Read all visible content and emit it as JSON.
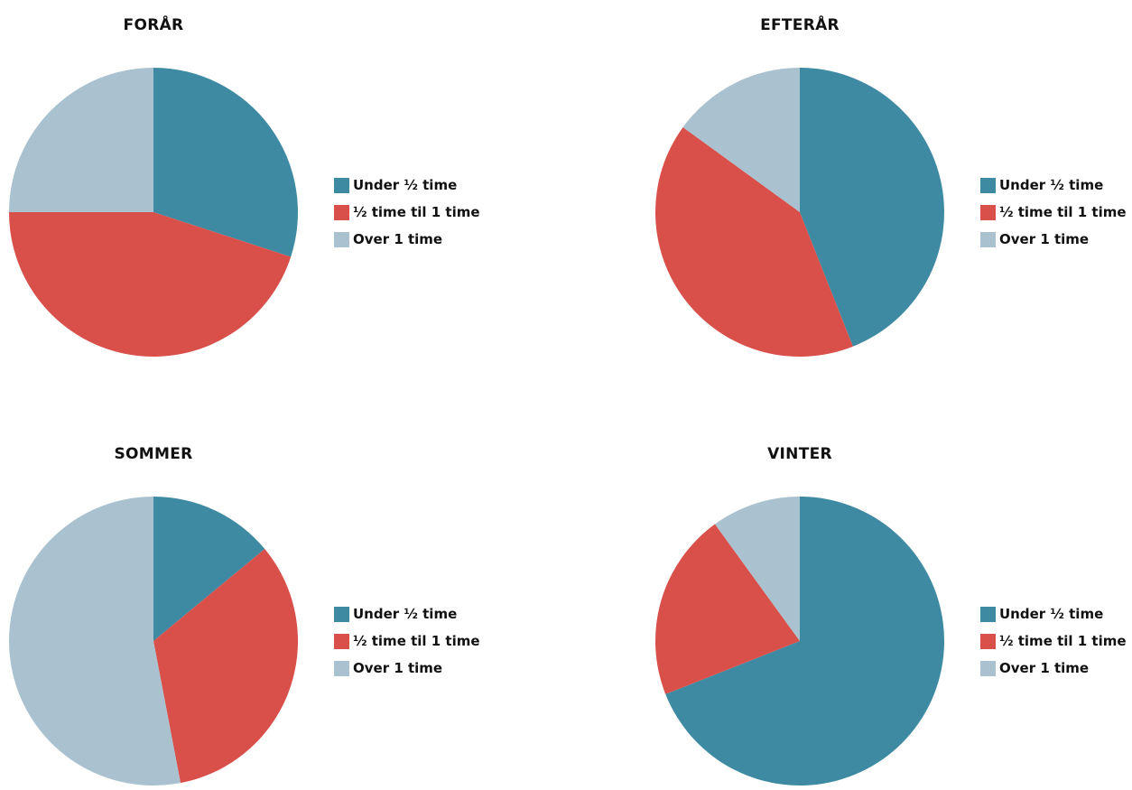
{
  "colors": {
    "under_half_hour": "#3f8aa3",
    "half_to_one_hour": "#d94f49",
    "over_one_hour": "#aac2cf"
  },
  "chart_data": [
    {
      "type": "pie",
      "title": "FORÅR",
      "legend_placement": "right",
      "categories": [
        "Under ½ time",
        "½ time til 1 time",
        "Over 1 time"
      ],
      "values": [
        30,
        45,
        25
      ],
      "colors": [
        "#3f8aa3",
        "#d94f49",
        "#aac2cf"
      ]
    },
    {
      "type": "pie",
      "title": "EFTERÅR",
      "legend_placement": "right",
      "categories": [
        "Under ½ time",
        "½ time til 1 time",
        "Over 1 time"
      ],
      "values": [
        44,
        41,
        15
      ],
      "colors": [
        "#3f8aa3",
        "#d94f49",
        "#aac2cf"
      ]
    },
    {
      "type": "pie",
      "title": "SOMMER",
      "legend_placement": "right",
      "categories": [
        "Under ½ time",
        "½ time til 1 time",
        "Over 1 time"
      ],
      "values": [
        14,
        33,
        53
      ],
      "colors": [
        "#3f8aa3",
        "#d94f49",
        "#aac2cf"
      ]
    },
    {
      "type": "pie",
      "title": "VINTER",
      "legend_placement": "right",
      "categories": [
        "Under ½ time",
        "½ time til 1 time",
        "Over 1 time"
      ],
      "values": [
        69,
        21,
        10
      ],
      "colors": [
        "#3f8aa3",
        "#d94f49",
        "#aac2cf"
      ]
    }
  ]
}
